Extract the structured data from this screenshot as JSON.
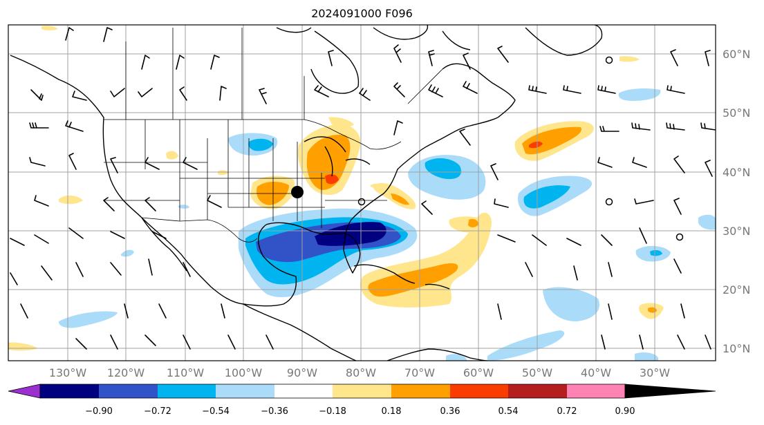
{
  "title": "2024091000 F096",
  "lat_labels": [
    "60°N",
    "50°N",
    "40°N",
    "30°N",
    "20°N",
    "10°N"
  ],
  "lon_labels": [
    "130°W",
    "120°W",
    "110°W",
    "100°W",
    "90°W",
    "80°W",
    "70°W",
    "60°W",
    "50°W",
    "40°W",
    "30°W"
  ],
  "colorbar": {
    "ticks": [
      "−0.90",
      "−0.72",
      "−0.54",
      "−0.36",
      "−0.18",
      "0.18",
      "0.36",
      "0.54",
      "0.72",
      "0.90"
    ],
    "colors": [
      "#9b30d0",
      "#000080",
      "#3252c8",
      "#00b4f0",
      "#aadcfa",
      "#ffffff",
      "#ffe68c",
      "#ffa000",
      "#fa3c00",
      "#b41e1e",
      "#ff82b4"
    ]
  },
  "colors": {
    "neg_strong": "#000080",
    "neg_mid": "#3252c8",
    "neg": "#00b4f0",
    "neg_light": "#aadcfa",
    "pos_light": "#ffe68c",
    "pos": "#ffa000",
    "pos_strong": "#fa3c00"
  },
  "marker": "storm-center-dot"
}
